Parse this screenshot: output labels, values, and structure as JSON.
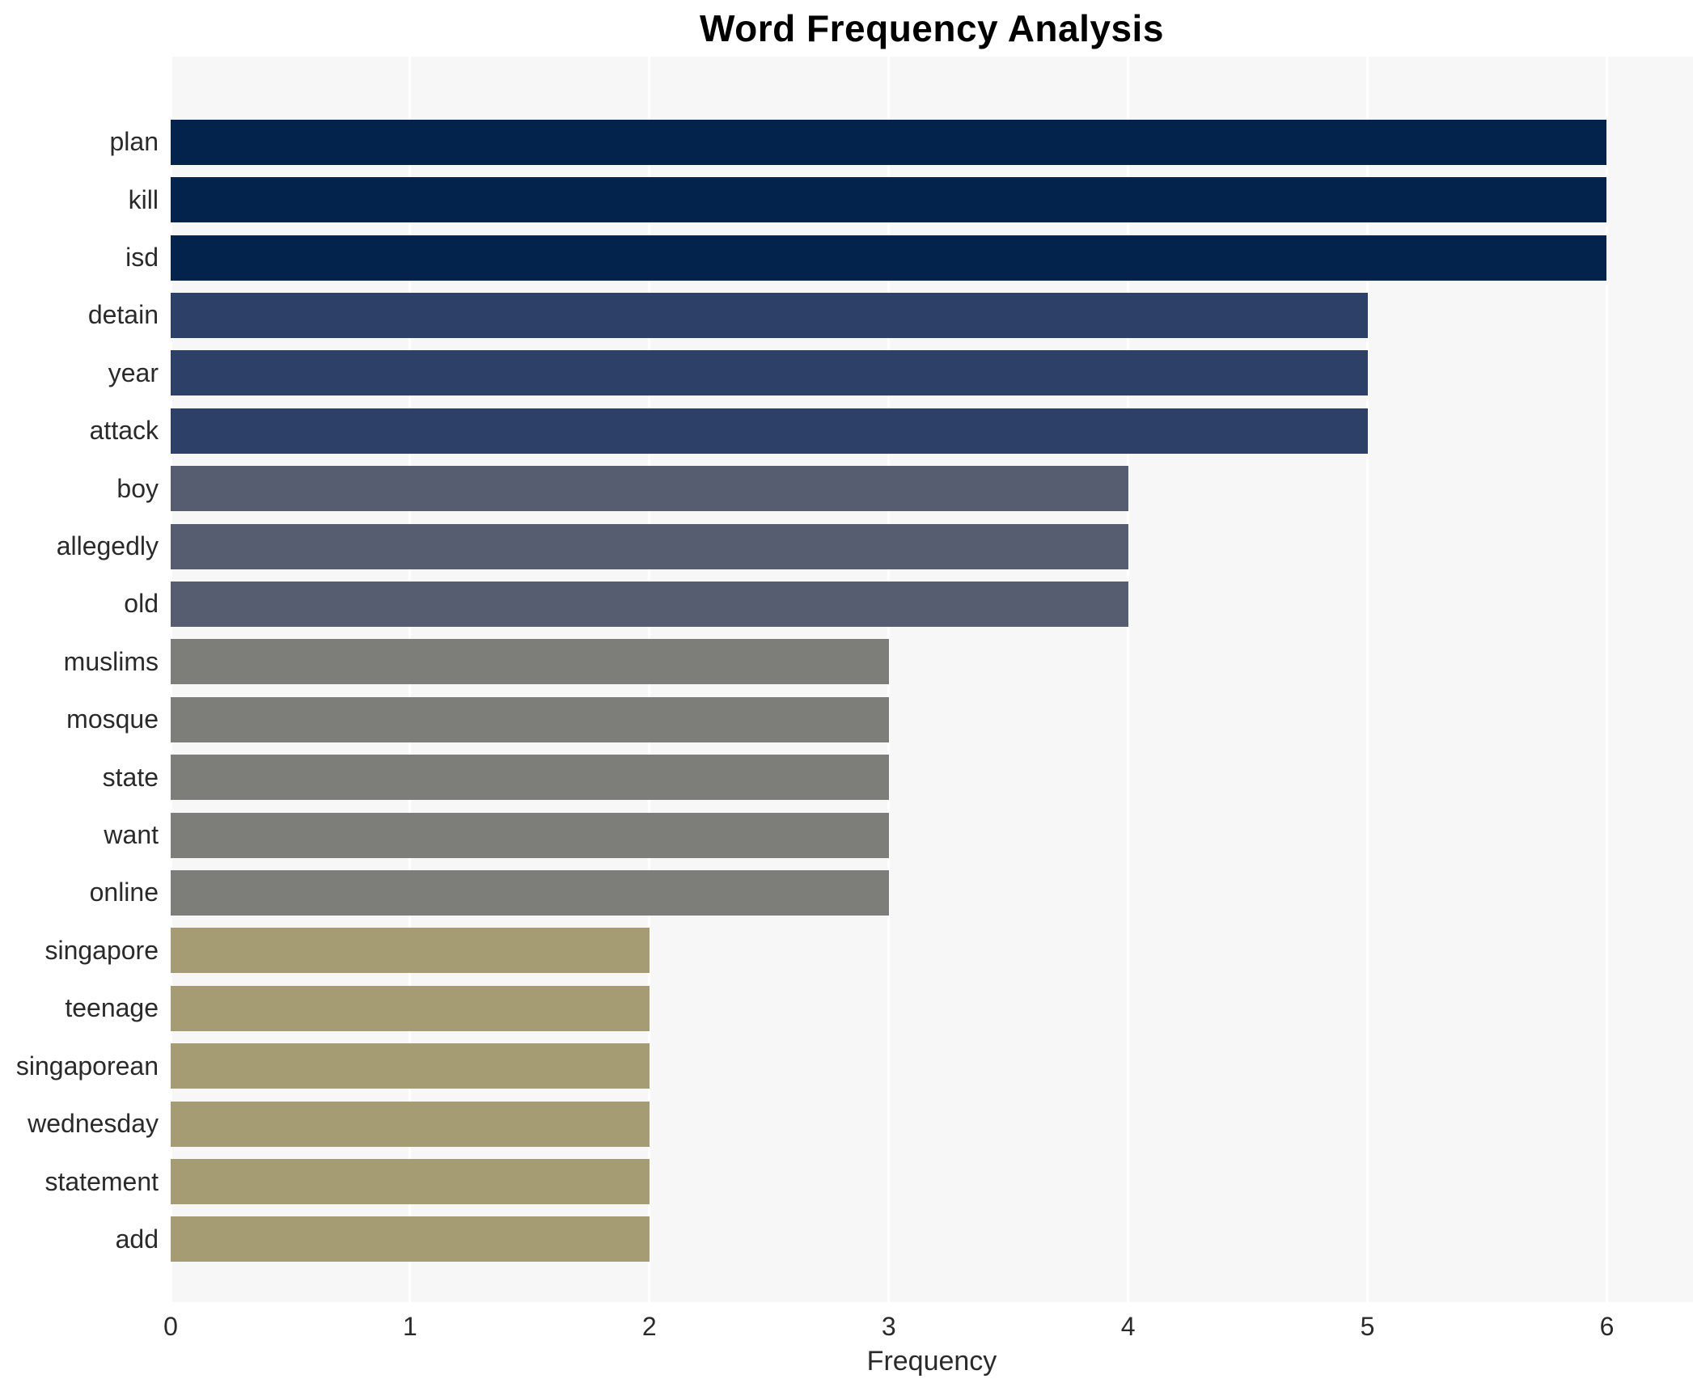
{
  "chart_data": {
    "type": "bar",
    "orientation": "horizontal",
    "title": "Word Frequency Analysis",
    "xlabel": "Frequency",
    "ylabel": "",
    "categories": [
      "plan",
      "kill",
      "isd",
      "detain",
      "year",
      "attack",
      "boy",
      "allegedly",
      "old",
      "muslims",
      "mosque",
      "state",
      "want",
      "online",
      "singapore",
      "teenage",
      "singaporean",
      "wednesday",
      "statement",
      "add"
    ],
    "values": [
      6,
      6,
      6,
      5,
      5,
      5,
      4,
      4,
      4,
      3,
      3,
      3,
      3,
      3,
      2,
      2,
      2,
      2,
      2,
      2
    ],
    "bar_colors_by_value": {
      "6": "#03234d",
      "5": "#2d4067",
      "4": "#565d70",
      "3": "#7d7d79",
      "2": "#a59c73"
    },
    "xticks": [
      0,
      1,
      2,
      3,
      4,
      5,
      6
    ],
    "xlim": [
      0,
      6.36
    ],
    "grid": "vertical",
    "gridline_color": "#ffffff",
    "plot_background": "#f7f7f7",
    "page_background": "#ffffff",
    "legend": "none"
  }
}
